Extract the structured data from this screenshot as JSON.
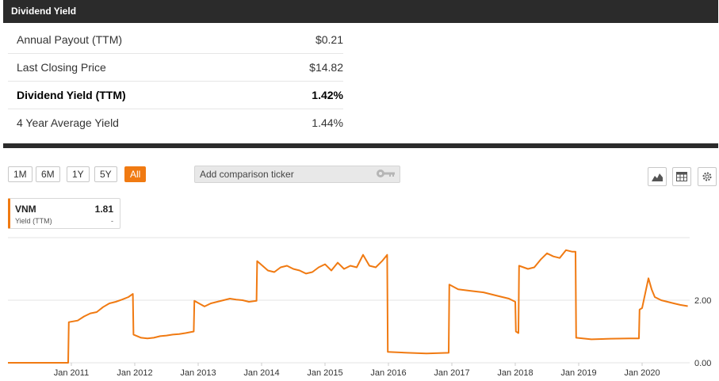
{
  "header": {
    "title": "Dividend Yield"
  },
  "stats": [
    {
      "label": "Annual Payout (TTM)",
      "value": "$0.21",
      "bold": false
    },
    {
      "label": "Last Closing Price",
      "value": "$14.82",
      "bold": false
    },
    {
      "label": "Dividend Yield (TTM)",
      "value": "1.42%",
      "bold": true
    },
    {
      "label": "4 Year Average Yield",
      "value": "1.44%",
      "bold": false
    }
  ],
  "toolbar": {
    "timeframes": [
      "1M",
      "6M",
      "1Y",
      "5Y",
      "All"
    ],
    "active_timeframe": "All",
    "compare_placeholder": "Add comparison ticker",
    "icons": [
      "area-chart-icon",
      "table-icon",
      "gear-icon"
    ]
  },
  "legend": {
    "ticker": "VNM",
    "value": "1.81",
    "series_label": "Yield (TTM)",
    "series_value": "-"
  },
  "colors": {
    "accent": "#f07a12",
    "header_bg": "#2b2b2b"
  },
  "chart_data": {
    "type": "line",
    "y_tick_labels": [
      "0.00",
      "2.00"
    ],
    "x_tick_labels": [
      "Jan 2011",
      "Jan 2012",
      "Jan 2013",
      "Jan 2014",
      "Jan 2015",
      "Jan 2016",
      "Jan 2017",
      "Jan 2018",
      "Jan 2019",
      "Jan 2020"
    ],
    "ylim": [
      0,
      4.0
    ],
    "xlim": [
      2010.0,
      2020.75
    ],
    "grid": true,
    "series": [
      {
        "name": "VNM",
        "color": "#f07a12",
        "x": [
          2010.0,
          2010.95,
          2010.96,
          2011.1,
          2011.2,
          2011.3,
          2011.4,
          2011.5,
          2011.6,
          2011.7,
          2011.8,
          2011.9,
          2011.97,
          2011.98,
          2012.1,
          2012.2,
          2012.3,
          2012.4,
          2012.5,
          2012.6,
          2012.7,
          2012.8,
          2012.93,
          2012.94,
          2013.1,
          2013.2,
          2013.3,
          2013.4,
          2013.5,
          2013.6,
          2013.7,
          2013.8,
          2013.92,
          2013.93,
          2014.1,
          2014.2,
          2014.3,
          2014.4,
          2014.5,
          2014.6,
          2014.7,
          2014.8,
          2014.9,
          2015.0,
          2015.1,
          2015.2,
          2015.3,
          2015.4,
          2015.5,
          2015.6,
          2015.7,
          2015.8,
          2015.9,
          2015.98,
          2015.99,
          2016.3,
          2016.6,
          2016.95,
          2016.96,
          2017.1,
          2017.3,
          2017.5,
          2017.6,
          2017.7,
          2017.9,
          2018.0,
          2018.01,
          2018.05,
          2018.06,
          2018.2,
          2018.3,
          2018.4,
          2018.5,
          2018.6,
          2018.7,
          2018.8,
          2018.9,
          2018.95,
          2018.96,
          2019.2,
          2019.5,
          2019.8,
          2019.95,
          2019.96,
          2020.0,
          2020.1,
          2020.15,
          2020.2,
          2020.3,
          2020.4,
          2020.5,
          2020.6,
          2020.72
        ],
        "values": [
          0.0,
          0.0,
          1.3,
          1.35,
          1.48,
          1.58,
          1.62,
          1.78,
          1.9,
          1.95,
          2.02,
          2.1,
          2.2,
          0.9,
          0.8,
          0.78,
          0.8,
          0.85,
          0.87,
          0.9,
          0.92,
          0.95,
          1.0,
          1.98,
          1.8,
          1.9,
          1.95,
          2.0,
          2.05,
          2.02,
          2.0,
          1.95,
          1.98,
          3.25,
          2.95,
          2.9,
          3.05,
          3.1,
          3.0,
          2.95,
          2.85,
          2.9,
          3.05,
          3.15,
          2.95,
          3.2,
          3.0,
          3.1,
          3.05,
          3.45,
          3.1,
          3.05,
          3.25,
          3.45,
          0.35,
          0.32,
          0.3,
          0.32,
          2.5,
          2.35,
          2.3,
          2.25,
          2.2,
          2.15,
          2.05,
          1.95,
          1.0,
          0.95,
          3.1,
          3.0,
          3.05,
          3.3,
          3.5,
          3.4,
          3.35,
          3.6,
          3.55,
          3.55,
          0.8,
          0.75,
          0.77,
          0.78,
          0.78,
          1.7,
          1.75,
          2.7,
          2.35,
          2.1,
          2.0,
          1.95,
          1.9,
          1.85,
          1.81
        ]
      }
    ]
  }
}
